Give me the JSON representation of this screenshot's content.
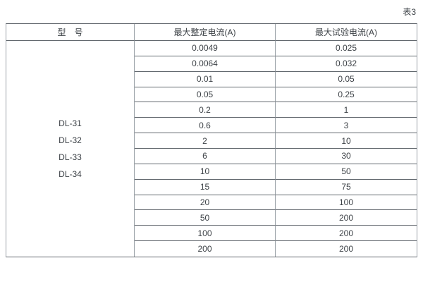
{
  "page": {
    "caption": "表3"
  },
  "table": {
    "headers": {
      "model": "型　号",
      "max_setting": "最大整定电流(A)",
      "max_test": "最大试验电流(A)"
    },
    "models": [
      "DL-31",
      "DL-32",
      "DL-33",
      "DL-34"
    ],
    "rows": [
      {
        "setting": "0.0049",
        "test": "0.025"
      },
      {
        "setting": "0.0064",
        "test": "0.032"
      },
      {
        "setting": "0.01",
        "test": "0.05"
      },
      {
        "setting": "0.05",
        "test": "0.25"
      },
      {
        "setting": "0.2",
        "test": "1"
      },
      {
        "setting": "0.6",
        "test": "3"
      },
      {
        "setting": "2",
        "test": "10"
      },
      {
        "setting": "6",
        "test": "30"
      },
      {
        "setting": "10",
        "test": "50"
      },
      {
        "setting": "15",
        "test": "75"
      },
      {
        "setting": "20",
        "test": "100"
      },
      {
        "setting": "50",
        "test": "200"
      },
      {
        "setting": "100",
        "test": "200"
      },
      {
        "setting": "200",
        "test": "200"
      }
    ]
  }
}
